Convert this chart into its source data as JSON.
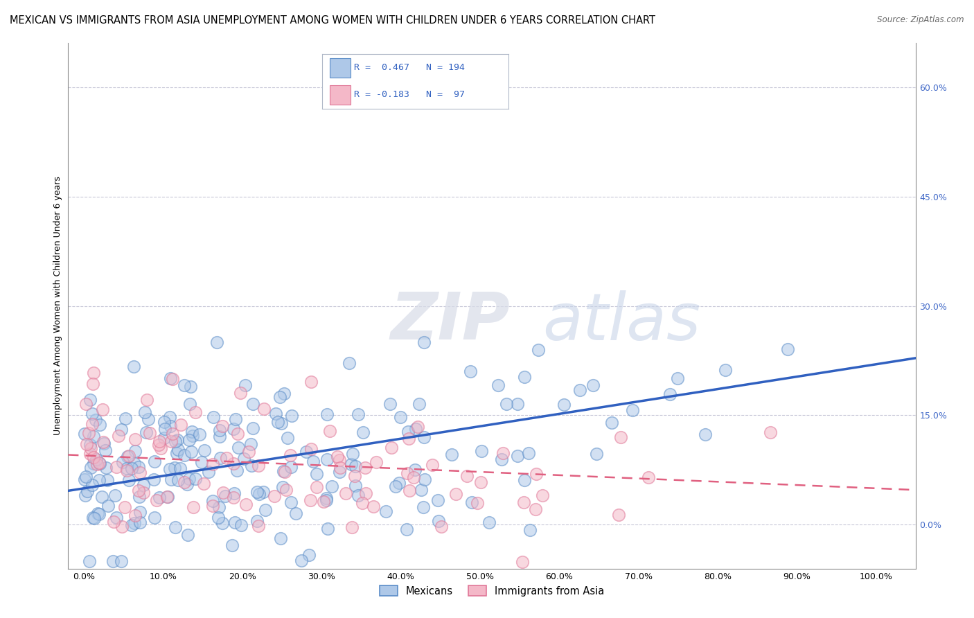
{
  "title": "MEXICAN VS IMMIGRANTS FROM ASIA UNEMPLOYMENT AMONG WOMEN WITH CHILDREN UNDER 6 YEARS CORRELATION CHART",
  "source": "Source: ZipAtlas.com",
  "ylabel": "Unemployment Among Women with Children Under 6 years",
  "xlabel_vals": [
    0,
    10,
    20,
    30,
    40,
    50,
    60,
    70,
    80,
    90,
    100
  ],
  "ylabel_vals": [
    0,
    15,
    30,
    45,
    60
  ],
  "xlim": [
    -2,
    105
  ],
  "ylim": [
    -6,
    66
  ],
  "blue_face": "#aec8e8",
  "blue_edge": "#5b8dc8",
  "pink_face": "#f4b8c8",
  "pink_edge": "#e07898",
  "blue_line_color": "#3060c0",
  "pink_line_color": "#e06080",
  "legend_blue_face": "#aec8e8",
  "legend_blue_edge": "#5b8dc8",
  "legend_pink_face": "#f4b8c8",
  "legend_pink_edge": "#e07898",
  "watermark_zip": "ZIP",
  "watermark_atlas": "atlas",
  "R_blue": 0.467,
  "N_blue": 194,
  "R_pink": -0.183,
  "N_pink": 97,
  "title_fontsize": 10.5,
  "source_fontsize": 8.5,
  "axis_fontsize": 9,
  "ylabel_fontsize": 9,
  "legend_fontsize": 10,
  "right_tick_color": "#4169c8",
  "grid_color": "#c8c8d8",
  "axis_color": "#888888"
}
